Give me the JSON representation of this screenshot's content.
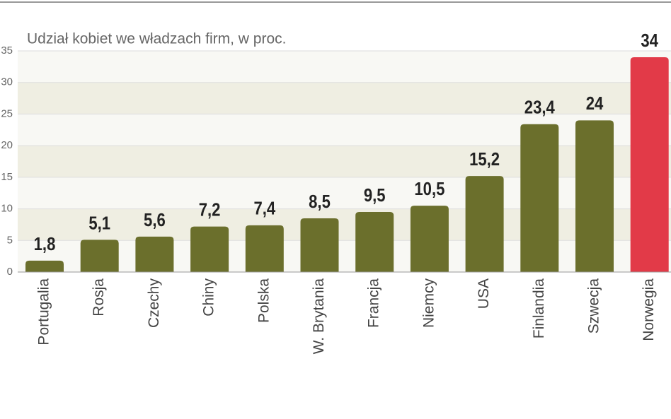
{
  "chart_data": {
    "type": "bar",
    "title": "Udział kobiet we władzach firm, w proc.",
    "categories": [
      "Portugalia",
      "Rosja",
      "Czechy",
      "Chiny",
      "Polska",
      "W. Brytania",
      "Francja",
      "Niemcy",
      "USA",
      "Finlandia",
      "Szwecja",
      "Norwegia"
    ],
    "values": [
      1.8,
      5.1,
      5.6,
      7.2,
      7.4,
      8.5,
      9.5,
      10.5,
      15.2,
      23.4,
      24,
      34
    ],
    "value_labels": [
      "1,8",
      "5,1",
      "5,6",
      "7,2",
      "7,4",
      "8,5",
      "9,5",
      "10,5",
      "15,2",
      "23,4",
      "24",
      "34"
    ],
    "colors": [
      "#6b6f2c",
      "#6b6f2c",
      "#6b6f2c",
      "#6b6f2c",
      "#6b6f2c",
      "#6b6f2c",
      "#6b6f2c",
      "#6b6f2c",
      "#6b6f2c",
      "#6b6f2c",
      "#6b6f2c",
      "#e23a48"
    ],
    "ylim": [
      0,
      35
    ],
    "yticks": [
      0,
      5,
      10,
      15,
      20,
      25,
      30,
      35
    ],
    "grid": true
  }
}
